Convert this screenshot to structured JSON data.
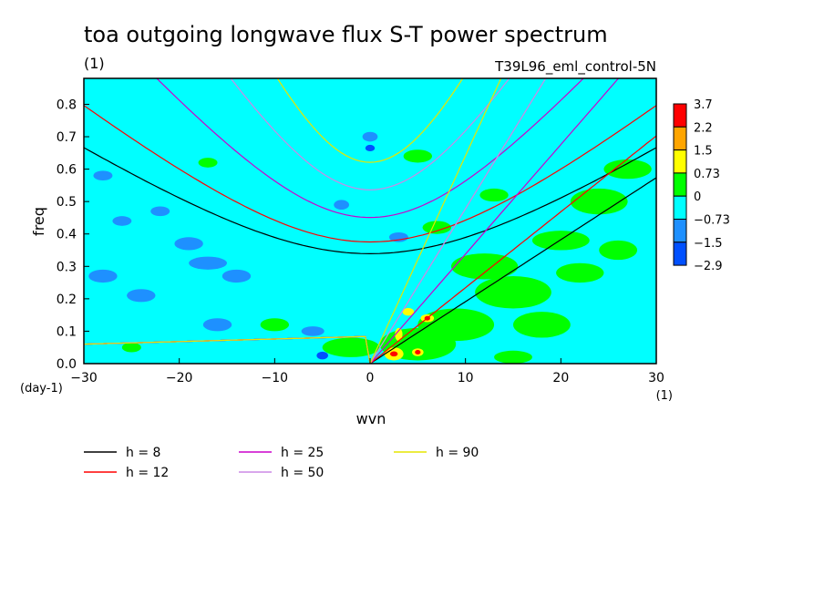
{
  "chart_data": {
    "type": "heatmap",
    "title": "toa outgoing longwave flux S-T power spectrum",
    "units": "(1)",
    "run_label": "T39L96_eml_control-5N",
    "xlabel": "wvn",
    "ylabel": "freq",
    "x_unit": "(1)",
    "y_unit": "(day-1)",
    "xlim": [
      -30,
      30
    ],
    "ylim": [
      0,
      0.88
    ],
    "x_ticks": [
      -30,
      -20,
      -10,
      0,
      10,
      20,
      30
    ],
    "x_tick_labels": [
      "−30",
      "−20",
      "−10",
      "0",
      "10",
      "20",
      "30"
    ],
    "y_ticks": [
      0.0,
      0.1,
      0.2,
      0.3,
      0.4,
      0.5,
      0.6,
      0.7,
      0.8
    ],
    "y_tick_labels": [
      "0.0",
      "0.1",
      "0.2",
      "0.3",
      "0.4",
      "0.5",
      "0.6",
      "0.7",
      "0.8"
    ],
    "background_level": "0 to -0.73",
    "colorbar": {
      "labels": [
        "3.7",
        "2.2",
        "1.5",
        "0.73",
        "0",
        "−0.73",
        "−1.5",
        "−2.9"
      ],
      "colors": [
        "#ff0000",
        "#ffa500",
        "#ffff00",
        "#00ff00",
        "#00ffff",
        "#1e90ff",
        "#0050ff"
      ]
    },
    "legend": [
      {
        "label": "h =  8",
        "color": "#000000"
      },
      {
        "label": "h = 12",
        "color": "#ff0000"
      },
      {
        "label": "h = 25",
        "color": "#cc00cc"
      },
      {
        "label": "h = 50",
        "color": "#cc88e6"
      },
      {
        "label": "h = 90",
        "color": "#e6e600"
      }
    ],
    "blobs": [
      {
        "level": "green",
        "x": 12,
        "y": 0.3,
        "rx": 3.5,
        "ry": 0.04
      },
      {
        "level": "green",
        "x": 15,
        "y": 0.22,
        "rx": 4.0,
        "ry": 0.05
      },
      {
        "level": "green",
        "x": 20,
        "y": 0.38,
        "rx": 3.0,
        "ry": 0.03
      },
      {
        "level": "green",
        "x": 24,
        "y": 0.5,
        "rx": 3.0,
        "ry": 0.04
      },
      {
        "level": "green",
        "x": 27,
        "y": 0.6,
        "rx": 2.5,
        "ry": 0.03
      },
      {
        "level": "green",
        "x": 9,
        "y": 0.12,
        "rx": 4.0,
        "ry": 0.05
      },
      {
        "level": "green",
        "x": 5,
        "y": 0.06,
        "rx": 4.0,
        "ry": 0.05
      },
      {
        "level": "green",
        "x": -2,
        "y": 0.05,
        "rx": 3.0,
        "ry": 0.03
      },
      {
        "level": "green",
        "x": 18,
        "y": 0.12,
        "rx": 3.0,
        "ry": 0.04
      },
      {
        "level": "green",
        "x": 22,
        "y": 0.28,
        "rx": 2.5,
        "ry": 0.03
      },
      {
        "level": "green",
        "x": 26,
        "y": 0.35,
        "rx": 2.0,
        "ry": 0.03
      },
      {
        "level": "green",
        "x": 7,
        "y": 0.42,
        "rx": 1.5,
        "ry": 0.02
      },
      {
        "level": "green",
        "x": 5,
        "y": 0.64,
        "rx": 1.5,
        "ry": 0.02
      },
      {
        "level": "green",
        "x": 13,
        "y": 0.52,
        "rx": 1.5,
        "ry": 0.02
      },
      {
        "level": "green",
        "x": -17,
        "y": 0.62,
        "rx": 1.0,
        "ry": 0.015
      },
      {
        "level": "green",
        "x": -10,
        "y": 0.12,
        "rx": 1.5,
        "ry": 0.02
      },
      {
        "level": "green",
        "x": 15,
        "y": 0.02,
        "rx": 2.0,
        "ry": 0.02
      },
      {
        "level": "green",
        "x": -25,
        "y": 0.05,
        "rx": 1.0,
        "ry": 0.015
      },
      {
        "level": "blue",
        "x": -19,
        "y": 0.37,
        "rx": 1.5,
        "ry": 0.02
      },
      {
        "level": "blue",
        "x": -17,
        "y": 0.31,
        "rx": 2.0,
        "ry": 0.02
      },
      {
        "level": "blue",
        "x": -24,
        "y": 0.21,
        "rx": 1.5,
        "ry": 0.02
      },
      {
        "level": "blue",
        "x": -28,
        "y": 0.27,
        "rx": 1.5,
        "ry": 0.02
      },
      {
        "level": "blue",
        "x": -14,
        "y": 0.27,
        "rx": 1.5,
        "ry": 0.02
      },
      {
        "level": "blue",
        "x": -16,
        "y": 0.12,
        "rx": 1.5,
        "ry": 0.02
      },
      {
        "level": "blue",
        "x": -26,
        "y": 0.44,
        "rx": 1.0,
        "ry": 0.015
      },
      {
        "level": "blue",
        "x": -22,
        "y": 0.47,
        "rx": 1.0,
        "ry": 0.015
      },
      {
        "level": "blue",
        "x": -28,
        "y": 0.58,
        "rx": 1.0,
        "ry": 0.015
      },
      {
        "level": "blue",
        "x": -6,
        "y": 0.1,
        "rx": 1.2,
        "ry": 0.015
      },
      {
        "level": "blue",
        "x": 3,
        "y": 0.39,
        "rx": 1.0,
        "ry": 0.015
      },
      {
        "level": "blue",
        "x": 0,
        "y": 0.7,
        "rx": 0.8,
        "ry": 0.015
      },
      {
        "level": "blue",
        "x": -3,
        "y": 0.49,
        "rx": 0.8,
        "ry": 0.015
      },
      {
        "level": "dark",
        "x": -5,
        "y": 0.025,
        "rx": 0.6,
        "ry": 0.012
      },
      {
        "level": "dark",
        "x": 0,
        "y": 0.665,
        "rx": 0.5,
        "ry": 0.01
      },
      {
        "level": "yellow",
        "x": 2.5,
        "y": 0.03,
        "rx": 1.0,
        "ry": 0.02
      },
      {
        "level": "yellow",
        "x": 3,
        "y": 0.09,
        "rx": 0.4,
        "ry": 0.02
      },
      {
        "level": "yellow",
        "x": 4,
        "y": 0.16,
        "rx": 0.6,
        "ry": 0.012
      },
      {
        "level": "yellow",
        "x": 6,
        "y": 0.14,
        "rx": 0.7,
        "ry": 0.012
      },
      {
        "level": "yellow",
        "x": 5,
        "y": 0.035,
        "rx": 0.6,
        "ry": 0.012
      },
      {
        "level": "red",
        "x": 2.5,
        "y": 0.03,
        "rx": 0.4,
        "ry": 0.008
      },
      {
        "level": "red",
        "x": 6,
        "y": 0.14,
        "rx": 0.3,
        "ry": 0.007
      },
      {
        "level": "red",
        "x": 5,
        "y": 0.035,
        "rx": 0.3,
        "ry": 0.007
      }
    ]
  }
}
